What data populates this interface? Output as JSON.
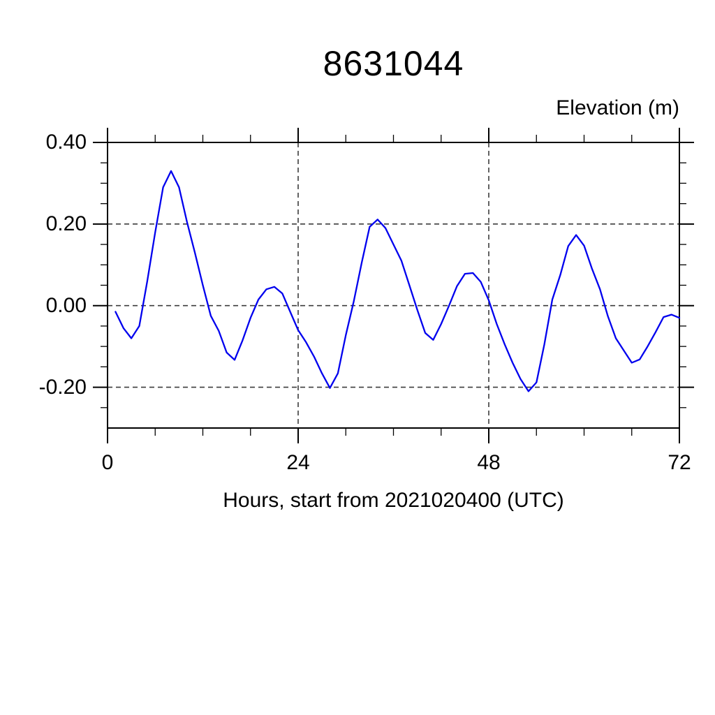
{
  "page": {
    "background": "#ffffff"
  },
  "colors": {
    "line": "#0000EE",
    "axis": "#000000",
    "grid": "#3c3c3c",
    "text": "#000000"
  },
  "chart_data": {
    "type": "line",
    "title": "8631044",
    "ylabel": "Elevation (m)",
    "xlabel": "Hours, start from 2021020400 (UTC)",
    "xlim": [
      0,
      72
    ],
    "ylim": [
      -0.3,
      0.4
    ],
    "grid": "dashed",
    "legend": "none",
    "x_major_ticks": [
      {
        "value": 0,
        "label": "0"
      },
      {
        "value": 24,
        "label": "24"
      },
      {
        "value": 48,
        "label": "48"
      },
      {
        "value": 72,
        "label": "72"
      }
    ],
    "x_minor_step": 6,
    "y_major_ticks": [
      {
        "value": 0.4,
        "label": "0.40"
      },
      {
        "value": 0.2,
        "label": "0.20"
      },
      {
        "value": 0.0,
        "label": "0.00"
      },
      {
        "value": -0.2,
        "label": "-0.20"
      }
    ],
    "y_minor_step": 0.05,
    "x_gridlines": [
      24,
      48
    ],
    "y_gridlines": [
      0.4,
      0.2,
      0.0,
      -0.2
    ],
    "series": [
      {
        "name": "elevation",
        "color": "#0000EE",
        "x": [
          1,
          2,
          3,
          4,
          5,
          6,
          7,
          8,
          9,
          10,
          11,
          12,
          13,
          14,
          15,
          16,
          17,
          18,
          19,
          20,
          21,
          22,
          23,
          24,
          25,
          26,
          27,
          28,
          29,
          30,
          31,
          32,
          33,
          34,
          35,
          36,
          37,
          38,
          39,
          40,
          41,
          42,
          43,
          44,
          45,
          46,
          47,
          48,
          49,
          50,
          51,
          52,
          53,
          54,
          55,
          56,
          57,
          58,
          59,
          60,
          61,
          62,
          63,
          64,
          65,
          66,
          67,
          68,
          69,
          70,
          71,
          72
        ],
        "y": [
          -0.015,
          -0.055,
          -0.08,
          -0.05,
          0.06,
          0.18,
          0.29,
          0.33,
          0.29,
          0.205,
          0.13,
          0.05,
          -0.025,
          -0.062,
          -0.115,
          -0.133,
          -0.085,
          -0.03,
          0.015,
          0.04,
          0.046,
          0.03,
          -0.015,
          -0.06,
          -0.09,
          -0.125,
          -0.166,
          -0.202,
          -0.166,
          -0.072,
          0.01,
          0.105,
          0.193,
          0.211,
          0.19,
          0.15,
          0.11,
          0.05,
          -0.01,
          -0.067,
          -0.084,
          -0.045,
          0.0,
          0.048,
          0.078,
          0.08,
          0.058,
          0.013,
          -0.045,
          -0.095,
          -0.14,
          -0.18,
          -0.21,
          -0.188,
          -0.095,
          0.015,
          0.075,
          0.146,
          0.173,
          0.147,
          0.09,
          0.04,
          -0.026,
          -0.08,
          -0.11,
          -0.14,
          -0.132,
          -0.1,
          -0.065,
          -0.028,
          -0.022,
          -0.03
        ]
      }
    ]
  }
}
